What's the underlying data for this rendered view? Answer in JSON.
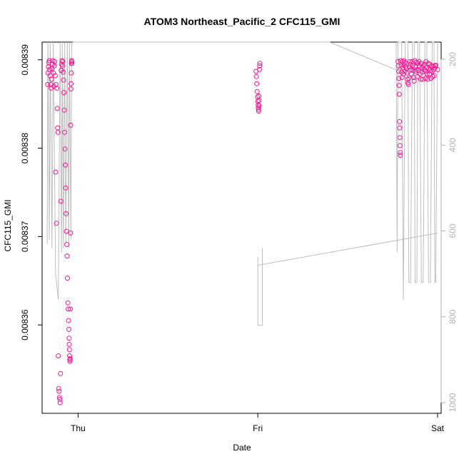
{
  "chart_data": {
    "type": "scatter",
    "title": "ATOM3 Northeast_Pacific_2 CFC115_GMI",
    "xlabel": "Date",
    "ylabel": "CFC115_GMI",
    "x_ticks": [
      "Thu",
      "Fri",
      "Sat"
    ],
    "y_ticks": [
      "0.00836",
      "0.00837",
      "0.00838",
      "0.00839"
    ],
    "y_right_ticks": [
      "200",
      "400",
      "600",
      "800",
      "1000"
    ],
    "xlim_days": [
      -0.2,
      2.02
    ],
    "ylim": [
      0.00835,
      0.008392
    ],
    "y_right_range": [
      1025,
      160
    ],
    "colors": {
      "points": "#ff1493",
      "pressure_line": "#bebebe",
      "axis": "#000000",
      "right_axis": "#b3b3b3"
    },
    "series": [
      {
        "values": [
          [
            -0.17,
            0.0083872
          ],
          [
            -0.168,
            0.0083885
          ],
          [
            -0.165,
            0.0083892
          ],
          [
            -0.163,
            0.0083897
          ],
          [
            -0.16,
            0.0083899
          ],
          [
            -0.158,
            0.0083889
          ],
          [
            -0.155,
            0.0083882
          ],
          [
            -0.152,
            0.0083872
          ],
          [
            -0.15,
            0.0083868
          ],
          [
            -0.148,
            0.0083878
          ],
          [
            -0.145,
            0.008389
          ],
          [
            -0.142,
            0.0083895
          ],
          [
            -0.14,
            0.0083899
          ],
          [
            -0.137,
            0.0083885
          ],
          [
            -0.135,
            0.008387
          ],
          [
            -0.133,
            0.0083893
          ],
          [
            -0.13,
            0.0083898
          ],
          [
            -0.127,
            0.0083882
          ],
          [
            -0.125,
            0.0083773
          ],
          [
            -0.123,
            0.0083872
          ],
          [
            -0.12,
            0.0083715
          ],
          [
            -0.118,
            0.0083868
          ],
          [
            -0.116,
            0.0083845
          ],
          [
            -0.114,
            0.0083823
          ],
          [
            -0.112,
            0.0083818
          ],
          [
            -0.11,
            0.0083565
          ],
          [
            -0.108,
            0.0083528
          ],
          [
            -0.106,
            0.0083525
          ],
          [
            -0.104,
            0.0083518
          ],
          [
            -0.102,
            0.0083516
          ],
          [
            -0.1,
            0.0083512
          ],
          [
            -0.098,
            0.0083545
          ],
          [
            -0.096,
            0.008374
          ],
          [
            -0.094,
            0.0083888
          ],
          [
            -0.092,
            0.0083895
          ],
          [
            -0.09,
            0.0083899
          ],
          [
            -0.087,
            0.0083893
          ],
          [
            -0.085,
            0.0083898
          ],
          [
            -0.083,
            0.0083886
          ],
          [
            -0.081,
            0.0083877
          ],
          [
            -0.079,
            0.0083863
          ],
          [
            -0.077,
            0.0083843
          ],
          [
            -0.075,
            0.0083818
          ],
          [
            -0.073,
            0.0083799
          ],
          [
            -0.071,
            0.0083781
          ],
          [
            -0.069,
            0.0083755
          ],
          [
            -0.067,
            0.0083726
          ],
          [
            -0.065,
            0.0083706
          ],
          [
            -0.063,
            0.0083691
          ],
          [
            -0.061,
            0.0083678
          ],
          [
            -0.059,
            0.0083653
          ],
          [
            -0.057,
            0.0083625
          ],
          [
            -0.055,
            0.0083618
          ],
          [
            -0.053,
            0.0083605
          ],
          [
            -0.051,
            0.0083595
          ],
          [
            -0.05,
            0.0083585
          ],
          [
            -0.049,
            0.0083578
          ],
          [
            -0.048,
            0.0083572
          ],
          [
            -0.047,
            0.0083565
          ],
          [
            -0.046,
            0.0083561
          ],
          [
            -0.045,
            0.0083559
          ],
          [
            -0.044,
            0.0083562
          ],
          [
            -0.043,
            0.0083618
          ],
          [
            -0.042,
            0.0083704
          ],
          [
            -0.041,
            0.0083826
          ],
          [
            -0.04,
            0.0083867
          ],
          [
            -0.039,
            0.0083873
          ],
          [
            -0.038,
            0.0083885
          ],
          [
            -0.037,
            0.0083896
          ],
          [
            -0.036,
            0.0083899
          ],
          [
            -0.035,
            0.0083898
          ],
          [
            -0.034,
            0.0083896
          ],
          [
            0.99,
            0.0083887
          ],
          [
            0.992,
            0.0083881
          ],
          [
            0.994,
            0.0083873
          ],
          [
            0.996,
            0.0083864
          ],
          [
            0.998,
            0.0083858
          ],
          [
            1.0,
            0.0083853
          ],
          [
            1.002,
            0.0083849
          ],
          [
            1.003,
            0.0083846
          ],
          [
            1.004,
            0.0083844
          ],
          [
            1.005,
            0.0083842
          ],
          [
            1.006,
            0.0083859
          ],
          [
            1.007,
            0.0083854
          ],
          [
            1.008,
            0.0083848
          ],
          [
            1.009,
            0.0083889
          ],
          [
            1.01,
            0.0083893
          ],
          [
            1.011,
            0.0083896
          ],
          [
            1.78,
            0.0083898
          ],
          [
            1.782,
            0.0083893
          ],
          [
            1.784,
            0.0083887
          ],
          [
            1.785,
            0.0083879
          ],
          [
            1.786,
            0.0083871
          ],
          [
            1.787,
            0.0083861
          ],
          [
            1.788,
            0.008383
          ],
          [
            1.789,
            0.0083823
          ],
          [
            1.79,
            0.0083812
          ],
          [
            1.791,
            0.0083803
          ],
          [
            1.792,
            0.0083795
          ],
          [
            1.793,
            0.0083792
          ],
          [
            1.795,
            0.0083899
          ],
          [
            1.798,
            0.0083893
          ],
          [
            1.8,
            0.0083886
          ],
          [
            1.802,
            0.008388
          ],
          [
            1.805,
            0.0083898
          ],
          [
            1.808,
            0.0083891
          ],
          [
            1.81,
            0.0083884
          ],
          [
            1.813,
            0.0083899
          ],
          [
            1.815,
            0.0083894
          ],
          [
            1.818,
            0.0083887
          ],
          [
            1.82,
            0.0083897
          ],
          [
            1.823,
            0.0083892
          ],
          [
            1.826,
            0.008389
          ],
          [
            1.829,
            0.0083885
          ],
          [
            1.832,
            0.0083878
          ],
          [
            1.835,
            0.0083874
          ],
          [
            1.838,
            0.0083872
          ],
          [
            1.84,
            0.0083879
          ],
          [
            1.843,
            0.0083892
          ],
          [
            1.846,
            0.0083898
          ],
          [
            1.849,
            0.0083895
          ],
          [
            1.852,
            0.0083889
          ],
          [
            1.855,
            0.0083884
          ],
          [
            1.858,
            0.0083898
          ],
          [
            1.861,
            0.0083893
          ],
          [
            1.864,
            0.0083888
          ],
          [
            1.867,
            0.008388
          ],
          [
            1.87,
            0.0083876
          ],
          [
            1.873,
            0.0083899
          ],
          [
            1.876,
            0.0083892
          ],
          [
            1.879,
            0.0083887
          ],
          [
            1.882,
            0.0083897
          ],
          [
            1.885,
            0.0083889
          ],
          [
            1.888,
            0.0083881
          ],
          [
            1.891,
            0.0083896
          ],
          [
            1.894,
            0.0083888
          ],
          [
            1.897,
            0.0083898
          ],
          [
            1.9,
            0.0083893
          ],
          [
            1.903,
            0.0083884
          ],
          [
            1.906,
            0.0083878
          ],
          [
            1.909,
            0.0083896
          ],
          [
            1.912,
            0.0083891
          ],
          [
            1.915,
            0.0083886
          ],
          [
            1.918,
            0.0083878
          ],
          [
            1.921,
            0.0083893
          ],
          [
            1.924,
            0.0083889
          ],
          [
            1.927,
            0.0083895
          ],
          [
            1.93,
            0.0083887
          ],
          [
            1.933,
            0.0083879
          ],
          [
            1.936,
            0.0083898
          ],
          [
            1.939,
            0.0083891
          ],
          [
            1.942,
            0.0083884
          ],
          [
            1.945,
            0.0083878
          ],
          [
            1.948,
            0.0083896
          ],
          [
            1.951,
            0.008389
          ],
          [
            1.954,
            0.0083884
          ],
          [
            1.957,
            0.0083895
          ],
          [
            1.96,
            0.0083888
          ],
          [
            1.963,
            0.0083879
          ],
          [
            1.966,
            0.0083893
          ],
          [
            1.969,
            0.0083887
          ],
          [
            1.972,
            0.0083881
          ],
          [
            1.975,
            0.0083893
          ],
          [
            1.978,
            0.0083889
          ],
          [
            1.981,
            0.0083882
          ],
          [
            1.984,
            0.0083891
          ],
          [
            1.987,
            0.0083893
          ],
          [
            1.99,
            0.0083894
          ],
          [
            2.0,
            0.0083889
          ]
        ]
      },
      {
        "values": [
          [
            -0.172,
            630
          ],
          [
            -0.168,
            160
          ],
          [
            -0.16,
            620
          ],
          [
            -0.155,
            160
          ],
          [
            -0.145,
            640
          ],
          [
            -0.138,
            160
          ],
          [
            -0.125,
            700
          ],
          [
            -0.11,
            760
          ],
          [
            -0.1,
            160
          ],
          [
            -0.092,
            650
          ],
          [
            -0.088,
            160
          ],
          [
            -0.082,
            640
          ],
          [
            -0.075,
            160
          ],
          [
            -0.068,
            630
          ],
          [
            -0.06,
            160
          ],
          [
            -0.052,
            640
          ],
          [
            -0.048,
            160
          ],
          [
            -0.04,
            620
          ],
          [
            -0.035,
            160
          ],
          [
            -0.03,
            160
          ],
          [
            0.72,
            160
          ],
          [
            1.4,
            160
          ],
          [
            1.8,
            230
          ],
          [
            1.01,
            160
          ],
          [
            1.01,
            160
          ],
          [
            1.0,
            660
          ],
          [
            1.0,
            820
          ],
          [
            1.025,
            820
          ],
          [
            1.025,
            640
          ],
          [
            1.0,
            680
          ],
          [
            2.0,
            605
          ],
          [
            1.77,
            160
          ],
          [
            1.775,
            650
          ],
          [
            1.78,
            160
          ],
          [
            1.8,
            160
          ],
          [
            1.81,
            760
          ],
          [
            1.82,
            160
          ],
          [
            1.835,
            160
          ],
          [
            1.84,
            720
          ],
          [
            1.85,
            720
          ],
          [
            1.86,
            160
          ],
          [
            1.87,
            160
          ],
          [
            1.875,
            720
          ],
          [
            1.885,
            720
          ],
          [
            1.89,
            160
          ],
          [
            1.9,
            160
          ],
          [
            1.91,
            720
          ],
          [
            1.92,
            720
          ],
          [
            1.93,
            160
          ],
          [
            1.94,
            160
          ],
          [
            1.95,
            720
          ],
          [
            1.96,
            720
          ],
          [
            1.97,
            160
          ],
          [
            1.98,
            160
          ],
          [
            1.985,
            720
          ],
          [
            1.99,
            720
          ],
          [
            2.0,
            160
          ]
        ]
      }
    ]
  }
}
